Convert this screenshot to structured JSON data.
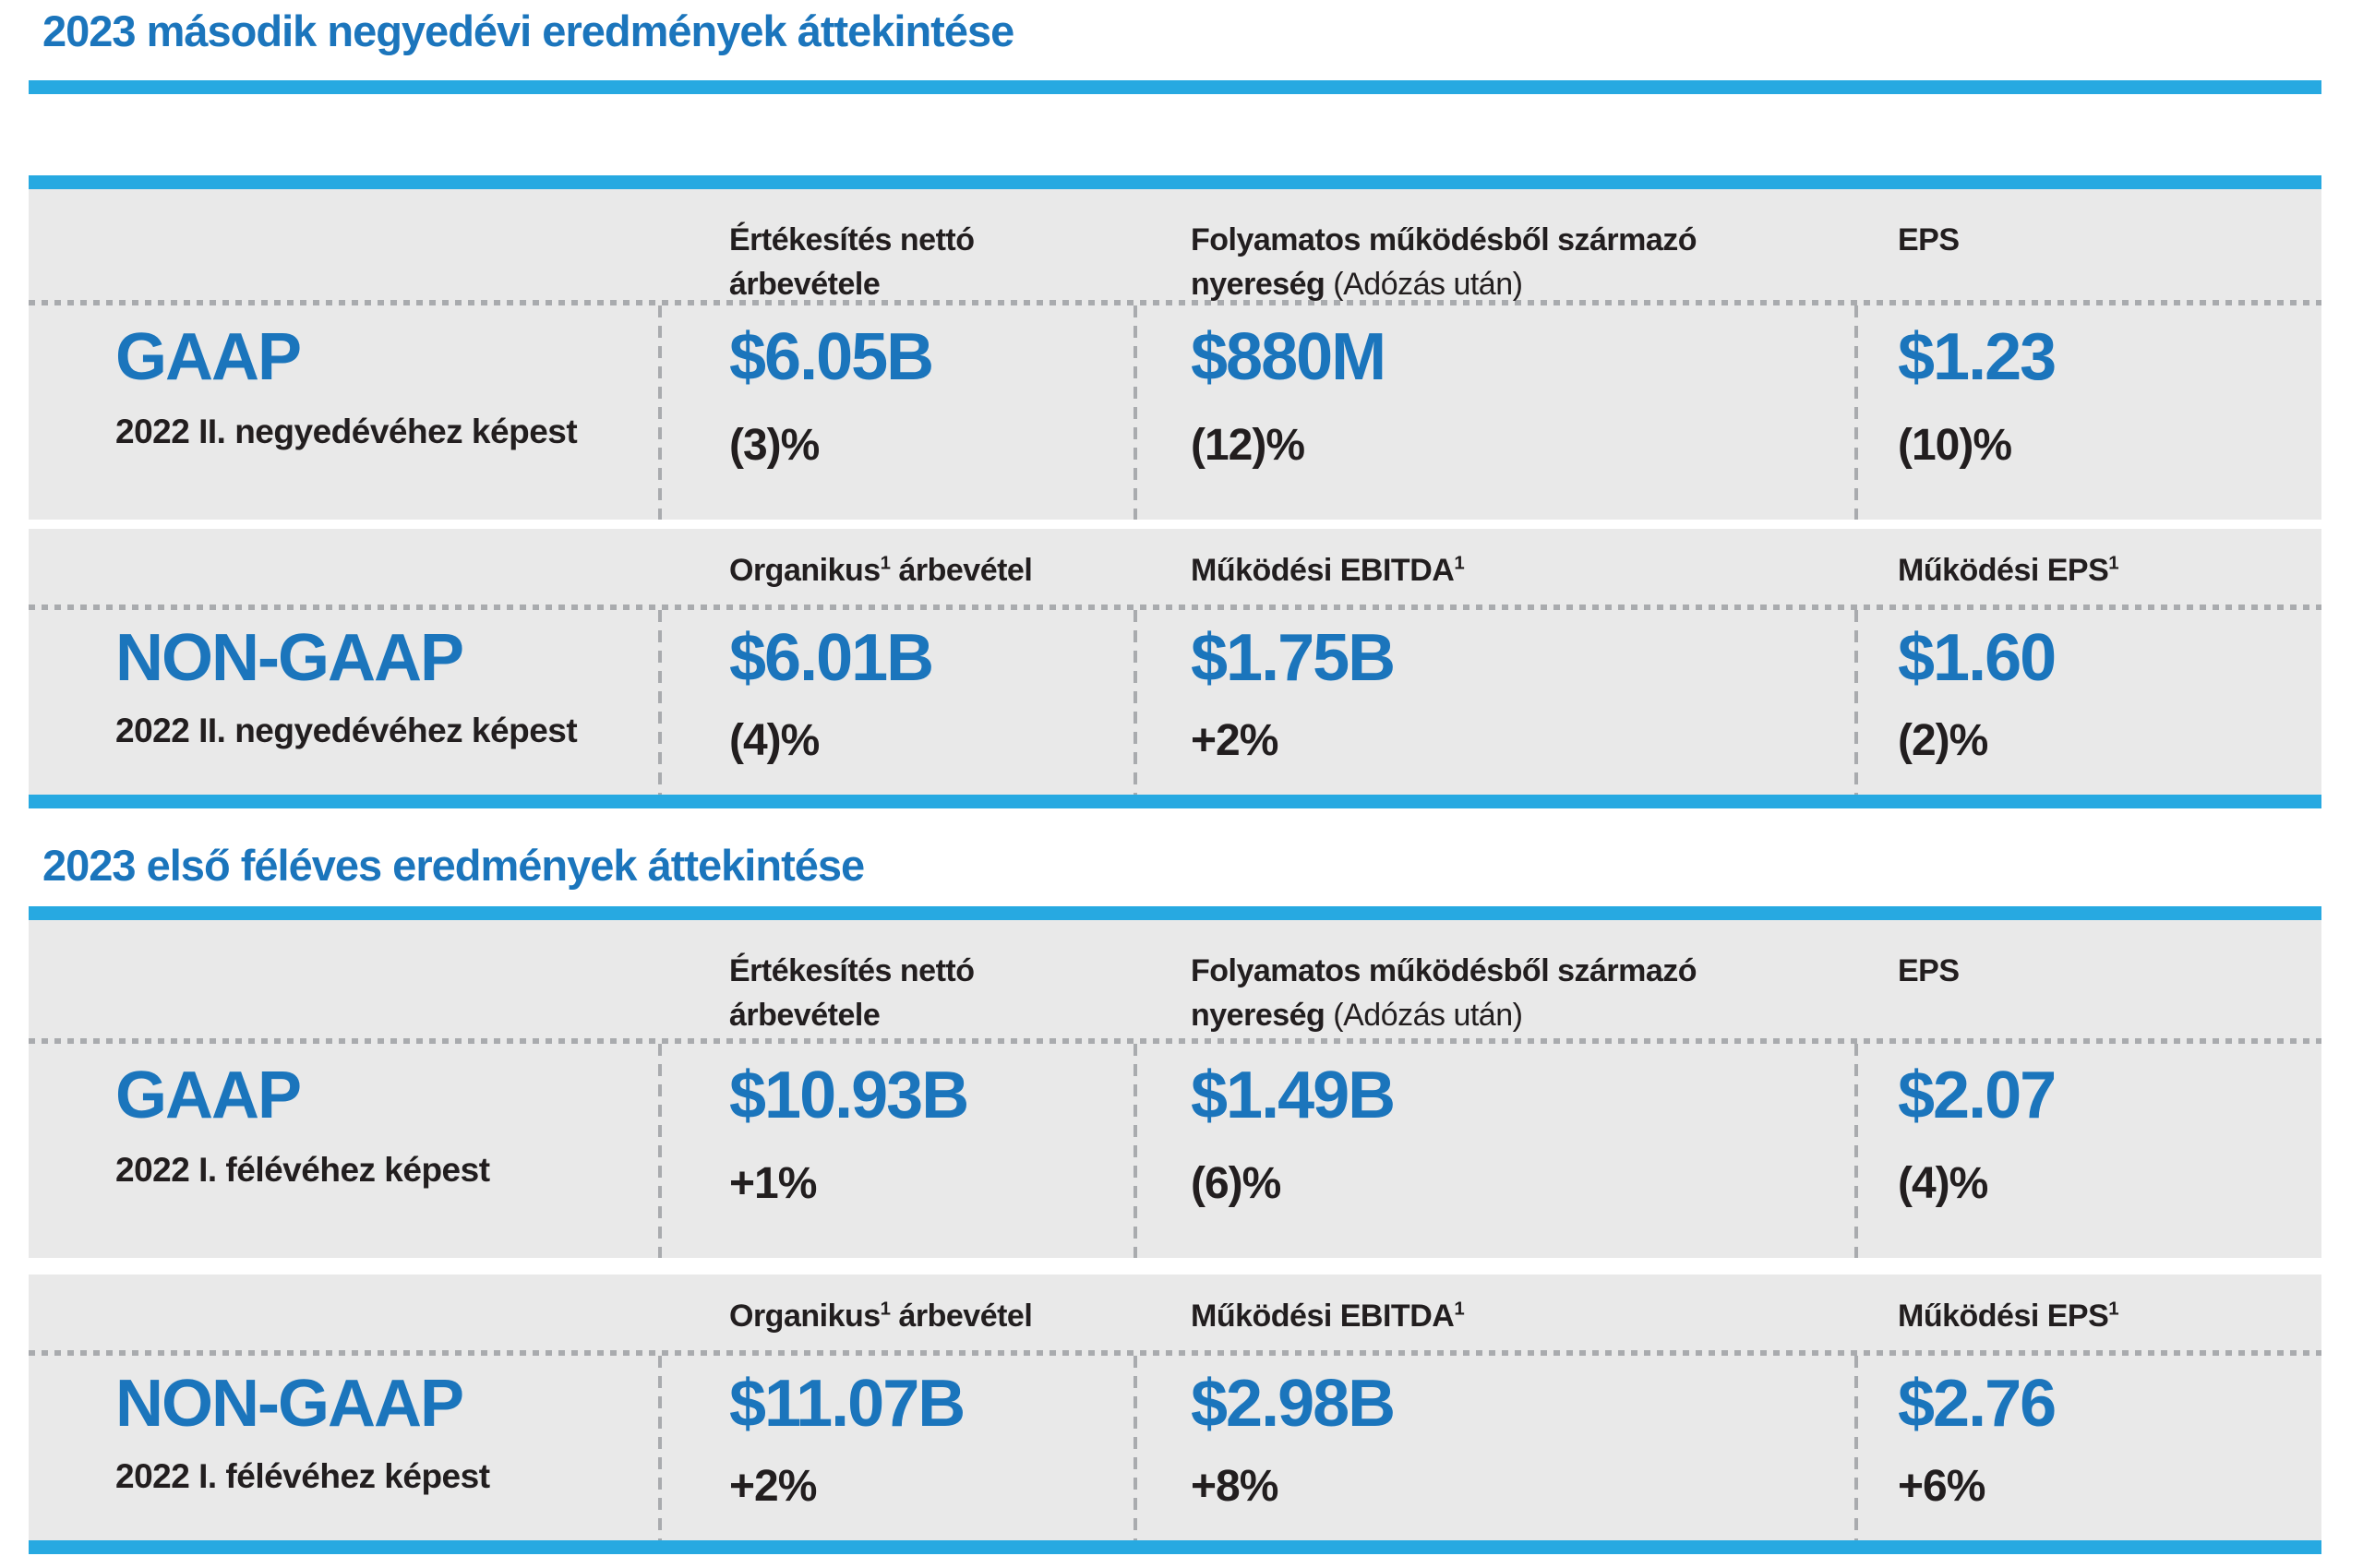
{
  "colors": {
    "title_blue": "#1B75BC",
    "value_blue": "#1B75BC",
    "bar_blue": "#27A9E1",
    "row_background": "#E9E9E9",
    "text_dark": "#221E1F",
    "divider_gray": "#A9ABAE"
  },
  "sections": {
    "q2": {
      "title": "2023 második negyedévi eredmények áttekintése",
      "gaap": {
        "headers": {
          "net_sales": {
            "bold": "Értékesítés nettó árbevétele"
          },
          "profit": {
            "bold": "Folyamatos működésből származó nyereség",
            "note": "(Adózás után)"
          },
          "eps": {
            "bold": "EPS"
          }
        },
        "row_label": "GAAP",
        "row_sublabel": "2022 II. negyedévéhez képest",
        "values": [
          {
            "value": "$6.05B",
            "change": "(3)%"
          },
          {
            "value": "$880M",
            "change": "(12)%"
          },
          {
            "value": "$1.23",
            "change": "(10)%"
          }
        ]
      },
      "non_gaap": {
        "headers": {
          "organic": {
            "bold": "Organikus",
            "sup": "1",
            "rest": " árbevétel"
          },
          "ebitda": {
            "bold": "Működési EBITDA",
            "sup": "1"
          },
          "op_eps": {
            "bold": "Működési EPS",
            "sup": "1"
          }
        },
        "row_label": "NON-GAAP",
        "row_sublabel": "2022 II. negyedévéhez képest",
        "values": [
          {
            "value": "$6.01B",
            "change": "(4)%"
          },
          {
            "value": "$1.75B",
            "change": "+2%"
          },
          {
            "value": "$1.60",
            "change": "(2)%"
          }
        ]
      }
    },
    "h1": {
      "title": "2023 első féléves eredmények áttekintése",
      "gaap": {
        "headers": {
          "net_sales": {
            "bold": "Értékesítés nettó árbevétele"
          },
          "profit": {
            "bold": "Folyamatos működésből származó nyereség",
            "note": "(Adózás után)"
          },
          "eps": {
            "bold": "EPS"
          }
        },
        "row_label": "GAAP",
        "row_sublabel": "2022 I. félévéhez képest",
        "values": [
          {
            "value": "$10.93B",
            "change": "+1%"
          },
          {
            "value": "$1.49B",
            "change": "(6)%"
          },
          {
            "value": "$2.07",
            "change": "(4)%"
          }
        ]
      },
      "non_gaap": {
        "headers": {
          "organic": {
            "bold": "Organikus",
            "sup": "1",
            "rest": " árbevétel"
          },
          "ebitda": {
            "bold": "Működési EBITDA",
            "sup": "1"
          },
          "op_eps": {
            "bold": "Működési EPS",
            "sup": "1"
          }
        },
        "row_label": "NON-GAAP",
        "row_sublabel": "2022 I. félévéhez képest",
        "values": [
          {
            "value": "$11.07B",
            "change": "+2%"
          },
          {
            "value": "$2.98B",
            "change": "+8%"
          },
          {
            "value": "$2.76",
            "change": "+6%"
          }
        ]
      }
    }
  }
}
